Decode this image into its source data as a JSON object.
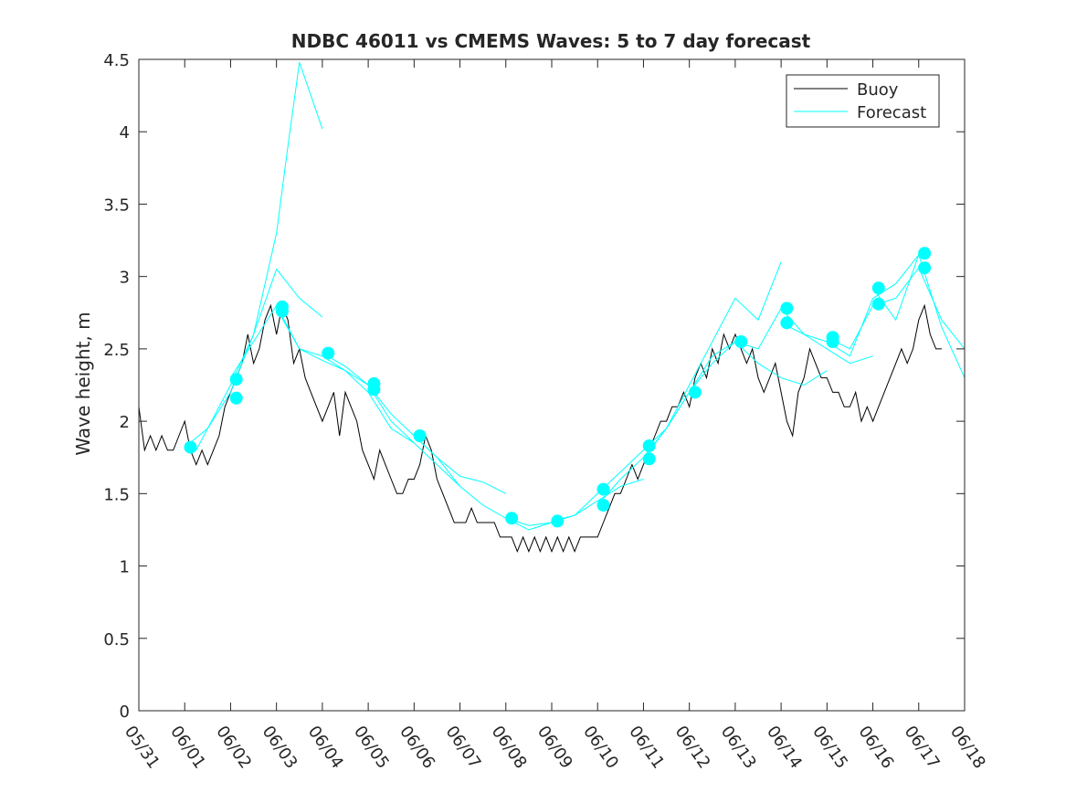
{
  "chart_data": {
    "type": "line",
    "title": "NDBC 46011 vs CMEMS Waves: 5 to 7 day forecast",
    "xlabel": "",
    "ylabel": "Wave height, m",
    "x_axis": {
      "type": "date",
      "start": "2023-05-31",
      "end": "2023-06-18",
      "tick_labels": [
        "05/31",
        "06/01",
        "06/02",
        "06/03",
        "06/04",
        "06/05",
        "06/06",
        "06/07",
        "06/08",
        "06/09",
        "06/10",
        "06/11",
        "06/12",
        "06/13",
        "06/14",
        "06/15",
        "06/16",
        "06/17",
        "06/18"
      ]
    },
    "y_axis": {
      "ylim": [
        0,
        4.5
      ],
      "ticks": [
        0,
        0.5,
        1,
        1.5,
        2,
        2.5,
        3,
        3.5,
        4,
        4.5
      ],
      "tick_labels": [
        "0",
        "0.5",
        "1",
        "1.5",
        "2",
        "2.5",
        "3",
        "3.5",
        "4",
        "4.5"
      ]
    },
    "grid": false,
    "legend": {
      "position": "top-right",
      "entries": [
        "Buoy",
        "Forecast"
      ]
    },
    "colors": {
      "buoy": "#000000",
      "forecast": "#00ffff",
      "axes": "#262626"
    },
    "buoy": {
      "name": "Buoy",
      "x": [
        "2023-05-31T00:00",
        "2023-05-31T03:00",
        "2023-05-31T06:00",
        "2023-05-31T09:00",
        "2023-05-31T12:00",
        "2023-05-31T15:00",
        "2023-05-31T18:00",
        "2023-05-31T21:00",
        "2023-06-01T00:00",
        "2023-06-01T03:00",
        "2023-06-01T06:00",
        "2023-06-01T09:00",
        "2023-06-01T12:00",
        "2023-06-01T15:00",
        "2023-06-01T18:00",
        "2023-06-01T21:00",
        "2023-06-02T00:00",
        "2023-06-02T03:00",
        "2023-06-02T06:00",
        "2023-06-02T09:00",
        "2023-06-02T12:00",
        "2023-06-02T15:00",
        "2023-06-02T18:00",
        "2023-06-02T21:00",
        "2023-06-03T00:00",
        "2023-06-03T03:00",
        "2023-06-03T06:00",
        "2023-06-03T09:00",
        "2023-06-03T12:00",
        "2023-06-03T15:00",
        "2023-06-03T18:00",
        "2023-06-03T21:00",
        "2023-06-04T00:00",
        "2023-06-04T03:00",
        "2023-06-04T06:00",
        "2023-06-04T09:00",
        "2023-06-04T12:00",
        "2023-06-04T15:00",
        "2023-06-04T18:00",
        "2023-06-04T21:00",
        "2023-06-05T00:00",
        "2023-06-05T03:00",
        "2023-06-05T06:00",
        "2023-06-05T09:00",
        "2023-06-05T12:00",
        "2023-06-05T15:00",
        "2023-06-05T18:00",
        "2023-06-05T21:00",
        "2023-06-06T00:00",
        "2023-06-06T03:00",
        "2023-06-06T06:00",
        "2023-06-06T09:00",
        "2023-06-06T12:00",
        "2023-06-06T15:00",
        "2023-06-06T18:00",
        "2023-06-06T21:00",
        "2023-06-07T00:00",
        "2023-06-07T03:00",
        "2023-06-07T06:00",
        "2023-06-07T09:00",
        "2023-06-07T12:00",
        "2023-06-07T15:00",
        "2023-06-07T18:00",
        "2023-06-07T21:00",
        "2023-06-08T00:00",
        "2023-06-08T03:00",
        "2023-06-08T06:00",
        "2023-06-08T09:00",
        "2023-06-08T12:00",
        "2023-06-08T15:00",
        "2023-06-08T18:00",
        "2023-06-08T21:00",
        "2023-06-09T00:00",
        "2023-06-09T03:00",
        "2023-06-09T06:00",
        "2023-06-09T09:00",
        "2023-06-09T12:00",
        "2023-06-09T15:00",
        "2023-06-09T18:00",
        "2023-06-09T21:00",
        "2023-06-10T00:00",
        "2023-06-10T03:00",
        "2023-06-10T06:00",
        "2023-06-10T09:00",
        "2023-06-10T12:00",
        "2023-06-10T15:00",
        "2023-06-10T18:00",
        "2023-06-10T21:00",
        "2023-06-11T00:00",
        "2023-06-11T03:00",
        "2023-06-11T06:00",
        "2023-06-11T09:00",
        "2023-06-11T12:00",
        "2023-06-11T15:00",
        "2023-06-11T18:00",
        "2023-06-11T21:00",
        "2023-06-12T00:00",
        "2023-06-12T03:00",
        "2023-06-12T06:00",
        "2023-06-12T09:00",
        "2023-06-12T12:00",
        "2023-06-12T15:00",
        "2023-06-12T18:00",
        "2023-06-12T21:00",
        "2023-06-13T00:00",
        "2023-06-13T03:00",
        "2023-06-13T06:00",
        "2023-06-13T09:00",
        "2023-06-13T12:00",
        "2023-06-13T15:00",
        "2023-06-13T18:00",
        "2023-06-13T21:00",
        "2023-06-14T00:00",
        "2023-06-14T03:00",
        "2023-06-14T06:00",
        "2023-06-14T09:00",
        "2023-06-14T12:00",
        "2023-06-14T15:00",
        "2023-06-14T18:00",
        "2023-06-14T21:00",
        "2023-06-15T00:00",
        "2023-06-15T03:00",
        "2023-06-15T06:00",
        "2023-06-15T09:00",
        "2023-06-15T12:00",
        "2023-06-15T15:00",
        "2023-06-15T18:00",
        "2023-06-15T21:00",
        "2023-06-16T00:00",
        "2023-06-16T03:00",
        "2023-06-16T06:00",
        "2023-06-16T09:00",
        "2023-06-16T12:00",
        "2023-06-16T15:00",
        "2023-06-16T18:00",
        "2023-06-16T21:00",
        "2023-06-17T00:00",
        "2023-06-17T03:00",
        "2023-06-17T06:00",
        "2023-06-17T09:00",
        "2023-06-17T12:00"
      ],
      "y": [
        2.1,
        1.8,
        1.9,
        1.8,
        1.9,
        1.8,
        1.8,
        1.9,
        2.0,
        1.8,
        1.7,
        1.8,
        1.7,
        1.8,
        1.9,
        2.1,
        2.2,
        2.3,
        2.4,
        2.6,
        2.4,
        2.5,
        2.7,
        2.8,
        2.6,
        2.8,
        2.7,
        2.4,
        2.5,
        2.3,
        2.2,
        2.1,
        2.0,
        2.1,
        2.2,
        1.9,
        2.2,
        2.1,
        2.0,
        1.8,
        1.7,
        1.6,
        1.8,
        1.7,
        1.6,
        1.5,
        1.5,
        1.6,
        1.6,
        1.7,
        1.9,
        1.8,
        1.6,
        1.5,
        1.4,
        1.3,
        1.3,
        1.3,
        1.4,
        1.3,
        1.3,
        1.3,
        1.3,
        1.2,
        1.2,
        1.2,
        1.1,
        1.2,
        1.1,
        1.2,
        1.1,
        1.2,
        1.1,
        1.2,
        1.1,
        1.2,
        1.1,
        1.2,
        1.2,
        1.2,
        1.2,
        1.3,
        1.4,
        1.5,
        1.5,
        1.6,
        1.7,
        1.6,
        1.7,
        1.8,
        1.9,
        2.0,
        2.0,
        2.1,
        2.1,
        2.2,
        2.1,
        2.3,
        2.4,
        2.3,
        2.5,
        2.4,
        2.6,
        2.5,
        2.6,
        2.5,
        2.4,
        2.5,
        2.3,
        2.2,
        2.3,
        2.4,
        2.2,
        2.0,
        1.9,
        2.2,
        2.3,
        2.5,
        2.4,
        2.3,
        2.3,
        2.2,
        2.2,
        2.1,
        2.1,
        2.2,
        2.0,
        2.1,
        2.0,
        2.1,
        2.2,
        2.3,
        2.4,
        2.5,
        2.4,
        2.5,
        2.7,
        2.8,
        2.6,
        2.5,
        2.5
      ]
    },
    "forecast_runs": [
      {
        "name": "Forecast",
        "x": [
          "2023-06-01T00:00",
          "2023-06-01T12:00",
          "2023-06-02T00:00",
          "2023-06-02T12:00",
          "2023-06-03T00:00",
          "2023-06-03T06:00",
          "2023-06-03T12:00",
          "2023-06-04T00:00"
        ],
        "y": [
          1.82,
          1.95,
          2.2,
          2.6,
          3.3,
          3.9,
          4.48,
          4.02
        ]
      },
      {
        "name": "Forecast",
        "x": [
          "2023-06-01T06:00",
          "2023-06-02T00:00",
          "2023-06-02T12:00",
          "2023-06-03T00:00",
          "2023-06-03T12:00",
          "2023-06-04T00:00"
        ],
        "y": [
          1.8,
          2.25,
          2.6,
          3.05,
          2.85,
          2.72
        ]
      },
      {
        "name": "Forecast",
        "x": [
          "2023-06-02T00:00",
          "2023-06-02T12:00",
          "2023-06-03T00:00",
          "2023-06-03T12:00",
          "2023-06-04T00:00",
          "2023-06-04T12:00",
          "2023-06-05T00:00"
        ],
        "y": [
          2.3,
          2.55,
          2.8,
          2.5,
          2.42,
          2.35,
          2.25
        ]
      },
      {
        "name": "Forecast",
        "x": [
          "2023-06-03T00:00",
          "2023-06-03T12:00",
          "2023-06-04T00:00",
          "2023-06-04T12:00",
          "2023-06-05T00:00",
          "2023-06-05T12:00",
          "2023-06-06T00:00"
        ],
        "y": [
          2.78,
          2.5,
          2.45,
          2.35,
          2.2,
          1.95,
          1.85
        ]
      },
      {
        "name": "Forecast",
        "x": [
          "2023-06-04T00:00",
          "2023-06-04T12:00",
          "2023-06-05T00:00",
          "2023-06-05T12:00",
          "2023-06-06T00:00",
          "2023-06-06T12:00",
          "2023-06-07T00:00"
        ],
        "y": [
          2.47,
          2.38,
          2.25,
          2.0,
          1.85,
          1.7,
          1.55
        ]
      },
      {
        "name": "Forecast",
        "x": [
          "2023-06-05T00:00",
          "2023-06-05T12:00",
          "2023-06-06T00:00",
          "2023-06-06T12:00",
          "2023-06-07T00:00",
          "2023-06-07T12:00",
          "2023-06-08T00:00"
        ],
        "y": [
          2.25,
          2.05,
          1.9,
          1.75,
          1.62,
          1.58,
          1.5
        ]
      },
      {
        "name": "Forecast",
        "x": [
          "2023-06-06T00:00",
          "2023-06-06T12:00",
          "2023-06-07T00:00",
          "2023-06-07T12:00",
          "2023-06-08T00:00",
          "2023-06-08T12:00",
          "2023-06-09T00:00"
        ],
        "y": [
          1.9,
          1.75,
          1.55,
          1.42,
          1.33,
          1.28,
          1.3
        ]
      },
      {
        "name": "Forecast",
        "x": [
          "2023-06-08T00:00",
          "2023-06-08T12:00",
          "2023-06-09T00:00",
          "2023-06-09T12:00",
          "2023-06-10T00:00",
          "2023-06-10T12:00",
          "2023-06-11T00:00"
        ],
        "y": [
          1.33,
          1.25,
          1.3,
          1.35,
          1.45,
          1.55,
          1.6
        ]
      },
      {
        "name": "Forecast",
        "x": [
          "2023-06-09T00:00",
          "2023-06-09T12:00",
          "2023-06-10T00:00",
          "2023-06-10T12:00",
          "2023-06-11T00:00",
          "2023-06-11T12:00",
          "2023-06-12T00:00"
        ],
        "y": [
          1.31,
          1.35,
          1.5,
          1.65,
          1.8,
          1.95,
          2.2
        ]
      },
      {
        "name": "Forecast",
        "x": [
          "2023-06-10T00:00",
          "2023-06-10T12:00",
          "2023-06-11T00:00",
          "2023-06-11T12:00",
          "2023-06-12T00:00",
          "2023-06-12T12:00",
          "2023-06-13T00:00"
        ],
        "y": [
          1.42,
          1.6,
          1.75,
          1.95,
          2.2,
          2.4,
          2.55
        ]
      },
      {
        "name": "Forecast",
        "x": [
          "2023-06-11T00:00",
          "2023-06-11T12:00",
          "2023-06-12T00:00",
          "2023-06-12T12:00",
          "2023-06-13T00:00",
          "2023-06-13T12:00",
          "2023-06-14T00:00"
        ],
        "y": [
          1.74,
          1.95,
          2.25,
          2.55,
          2.85,
          2.7,
          3.1
        ]
      },
      {
        "name": "Forecast",
        "x": [
          "2023-06-12T00:00",
          "2023-06-12T12:00",
          "2023-06-13T00:00",
          "2023-06-13T12:00",
          "2023-06-14T00:00",
          "2023-06-14T12:00",
          "2023-06-15T00:00"
        ],
        "y": [
          2.2,
          2.45,
          2.55,
          2.4,
          2.3,
          2.25,
          2.35
        ]
      },
      {
        "name": "Forecast",
        "x": [
          "2023-06-13T00:00",
          "2023-06-13T12:00",
          "2023-06-14T00:00",
          "2023-06-14T12:00",
          "2023-06-15T00:00",
          "2023-06-15T12:00",
          "2023-06-16T00:00"
        ],
        "y": [
          2.55,
          2.5,
          2.78,
          2.6,
          2.5,
          2.4,
          2.45
        ]
      },
      {
        "name": "Forecast",
        "x": [
          "2023-06-14T00:00",
          "2023-06-14T12:00",
          "2023-06-15T00:00",
          "2023-06-15T12:00",
          "2023-06-16T00:00",
          "2023-06-16T12:00",
          "2023-06-17T00:00"
        ],
        "y": [
          2.68,
          2.6,
          2.55,
          2.45,
          2.85,
          2.95,
          3.15
        ]
      },
      {
        "name": "Forecast",
        "x": [
          "2023-06-15T00:00",
          "2023-06-15T12:00",
          "2023-06-16T00:00",
          "2023-06-16T12:00",
          "2023-06-17T00:00",
          "2023-06-17T12:00",
          "2023-06-18T00:00"
        ],
        "y": [
          2.58,
          2.5,
          2.8,
          2.85,
          3.06,
          2.7,
          2.5
        ]
      },
      {
        "name": "Forecast",
        "x": [
          "2023-06-16T00:00",
          "2023-06-16T12:00",
          "2023-06-17T00:00",
          "2023-06-17T12:00",
          "2023-06-18T00:00"
        ],
        "y": [
          2.92,
          2.7,
          3.15,
          2.65,
          2.3
        ]
      }
    ],
    "forecast_start_markers": {
      "x": [
        "2023-06-01T03:00",
        "2023-06-02T03:00",
        "2023-06-02T03:00",
        "2023-06-03T03:00",
        "2023-06-03T03:00",
        "2023-06-04T03:00",
        "2023-06-05T03:00",
        "2023-06-05T03:00",
        "2023-06-06T03:00",
        "2023-06-08T03:00",
        "2023-06-09T03:00",
        "2023-06-10T03:00",
        "2023-06-10T03:00",
        "2023-06-11T03:00",
        "2023-06-11T03:00",
        "2023-06-12T03:00",
        "2023-06-13T03:00",
        "2023-06-14T03:00",
        "2023-06-14T03:00",
        "2023-06-15T03:00",
        "2023-06-15T03:00",
        "2023-06-16T03:00",
        "2023-06-16T03:00",
        "2023-06-17T03:00",
        "2023-06-17T03:00"
      ],
      "y": [
        1.82,
        2.29,
        2.16,
        2.79,
        2.76,
        2.47,
        2.26,
        2.22,
        1.9,
        1.33,
        1.31,
        1.53,
        1.42,
        1.83,
        1.74,
        2.2,
        2.55,
        2.78,
        2.68,
        2.58,
        2.55,
        2.92,
        2.81,
        3.16,
        3.06
      ]
    }
  }
}
